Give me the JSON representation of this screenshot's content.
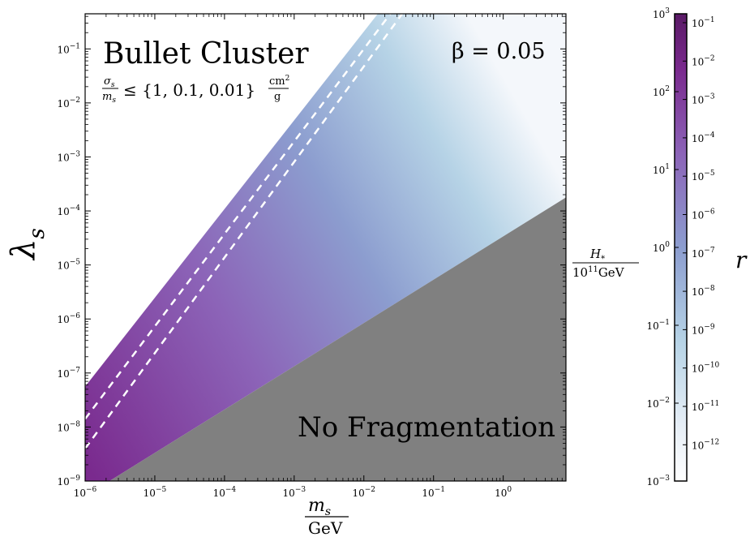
{
  "chart_data": {
    "type": "heatmap",
    "x_axis": {
      "scale": "log",
      "range_exp": [
        -6,
        0.9
      ],
      "label_num": "m",
      "label_num_sub": "s",
      "label_den": "GeV",
      "ticks": [
        {
          "base": "10",
          "exp": "−6"
        },
        {
          "base": "10",
          "exp": "−5"
        },
        {
          "base": "10",
          "exp": "−4"
        },
        {
          "base": "10",
          "exp": "−3"
        },
        {
          "base": "10",
          "exp": "−2"
        },
        {
          "base": "10",
          "exp": "−1"
        },
        {
          "base": "10",
          "exp": "0"
        }
      ]
    },
    "y_axis": {
      "scale": "log",
      "range_exp": [
        -9,
        -0.35
      ],
      "label": "λ",
      "label_sub": "s",
      "ticks": [
        {
          "base": "10",
          "exp": "−9"
        },
        {
          "base": "10",
          "exp": "−8"
        },
        {
          "base": "10",
          "exp": "−7"
        },
        {
          "base": "10",
          "exp": "−6"
        },
        {
          "base": "10",
          "exp": "−5"
        },
        {
          "base": "10",
          "exp": "−4"
        },
        {
          "base": "10",
          "exp": "−3"
        },
        {
          "base": "10",
          "exp": "−2"
        },
        {
          "base": "10",
          "exp": "−1"
        }
      ]
    },
    "regions": {
      "no_fragmentation_line": {
        "x_exp": [
          -5.65,
          0.9
        ],
        "y_exp": [
          -9,
          -3.75
        ]
      },
      "bullet_cluster_line": {
        "x_exp": [
          -6,
          -1.8
        ],
        "y_exp": [
          -7.25,
          -0.35
        ]
      },
      "dashed_lines": [
        {
          "x_exp": [
            -6,
            -1.62
          ],
          "y_exp": [
            -7.85,
            -0.35
          ]
        },
        {
          "x_exp": [
            -6,
            -1.45
          ],
          "y_exp": [
            -8.4,
            -0.35
          ]
        }
      ],
      "colors": {
        "no_fragmentation": "#808080",
        "map_low": "#f4f7fb",
        "map_mid_low": "#b6d3e6",
        "map_mid": "#8c9dcf",
        "map_mid_high": "#8c64b8",
        "map_high": "#7a2a8e"
      }
    },
    "annotations": {
      "title": "Bullet Cluster",
      "cross_section": "≤ {1, 0.1, 0.01}",
      "cross_section_lhs_num": "σ",
      "cross_section_lhs_num_sub": "s",
      "cross_section_lhs_den": "m",
      "cross_section_lhs_den_sub": "s",
      "cross_section_unit_num": "cm",
      "cross_section_unit_num_sup": "2",
      "cross_section_unit_den": "g",
      "beta_label": "β = 0.05",
      "no_frag_label": "No Fragmentation"
    },
    "colorbar": {
      "left_label_num": "H",
      "left_label_num_sub": "*",
      "left_label_den_base": "10",
      "left_label_den_exp": "11",
      "left_label_den_unit": "GeV",
      "right_label": "r",
      "left_ticks": [
        {
          "base": "10",
          "exp": "3"
        },
        {
          "base": "10",
          "exp": "2"
        },
        {
          "base": "10",
          "exp": "1"
        },
        {
          "base": "10",
          "exp": "0"
        },
        {
          "base": "10",
          "exp": "−1"
        },
        {
          "base": "10",
          "exp": "−2"
        },
        {
          "base": "10",
          "exp": "−3"
        }
      ],
      "right_ticks": [
        {
          "base": "10",
          "exp": "−1"
        },
        {
          "base": "10",
          "exp": "−2"
        },
        {
          "base": "10",
          "exp": "−3"
        },
        {
          "base": "10",
          "exp": "−4"
        },
        {
          "base": "10",
          "exp": "−5"
        },
        {
          "base": "10",
          "exp": "−6"
        },
        {
          "base": "10",
          "exp": "−7"
        },
        {
          "base": "10",
          "exp": "−8"
        },
        {
          "base": "10",
          "exp": "−9"
        },
        {
          "base": "10",
          "exp": "−10"
        },
        {
          "base": "10",
          "exp": "−11"
        },
        {
          "base": "10",
          "exp": "−12"
        }
      ]
    }
  }
}
